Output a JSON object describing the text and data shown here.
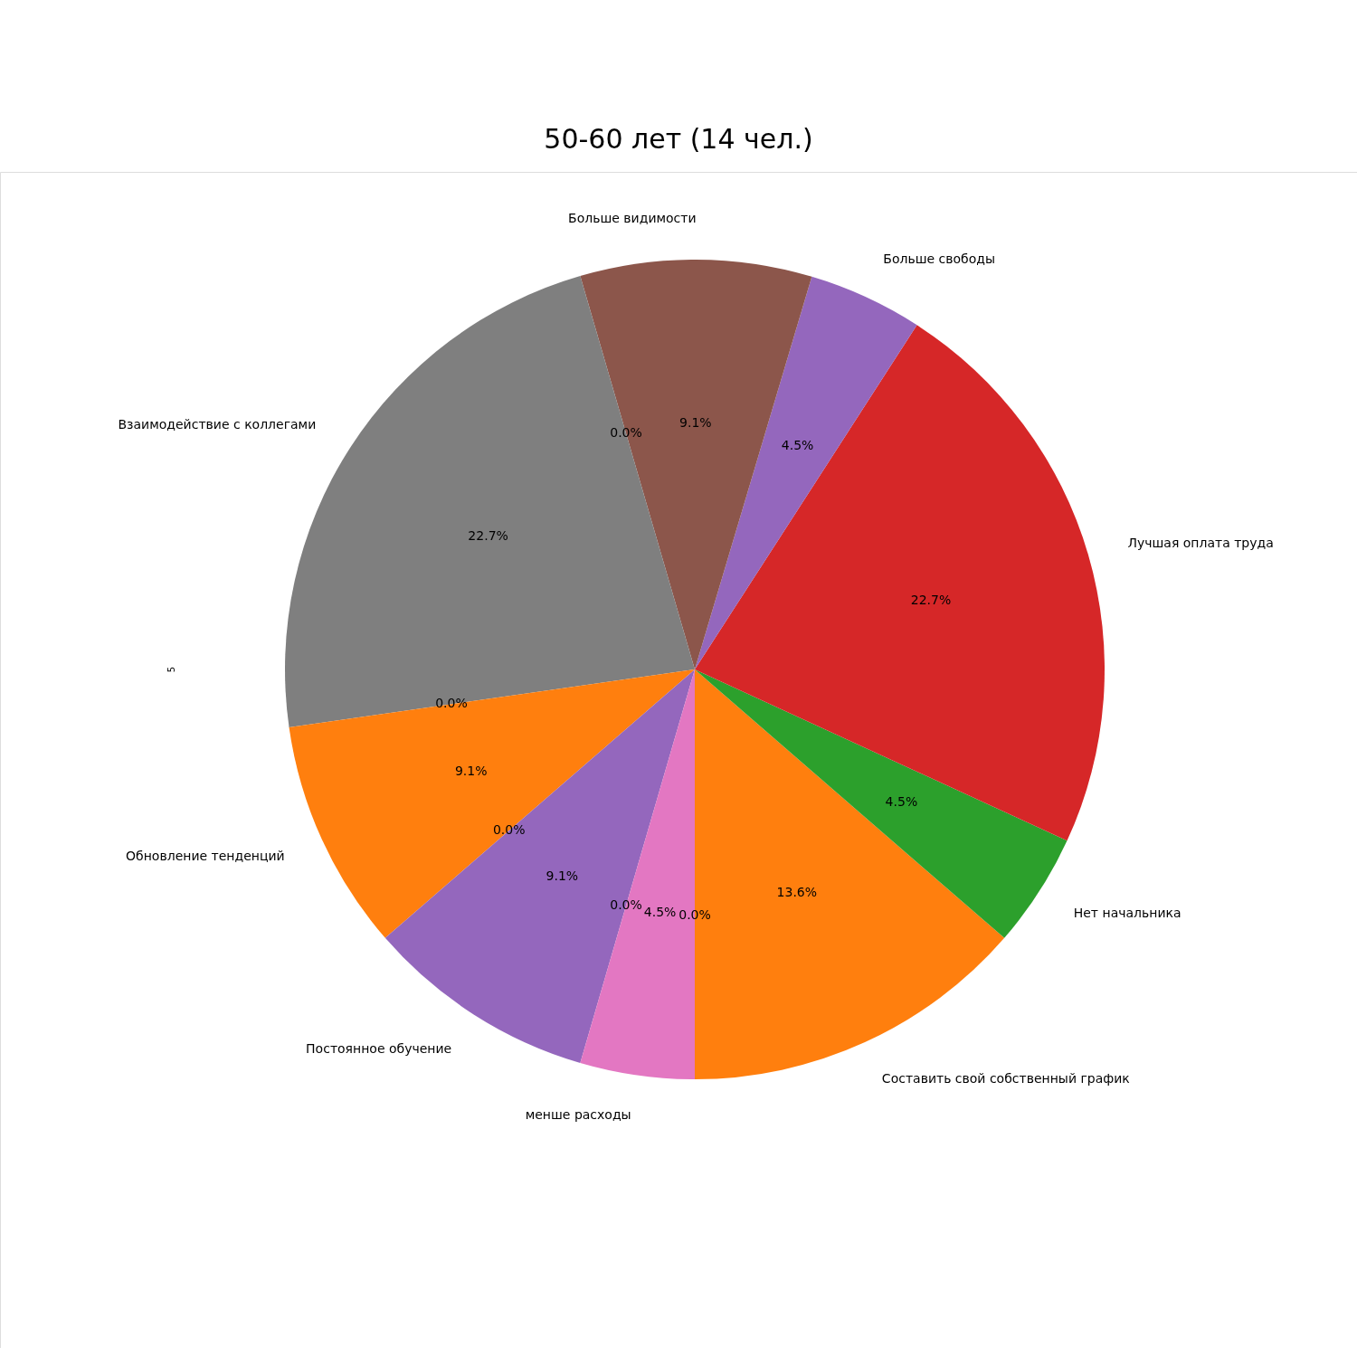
{
  "chart_data": {
    "type": "pie",
    "title": "50-60 лет (14 чел.)",
    "ylabel": "5",
    "categories": [
      "Составить свой собственный график",
      "Нет начальника",
      "Лучшая оплата труда",
      "Больше свободы",
      "Больше видимости",
      null,
      "Взаимодействие с коллегами",
      null,
      "Обновление тенденций",
      null,
      "Постоянное обучение",
      null,
      "менше расходы",
      null
    ],
    "values": [
      13.6,
      4.5,
      22.7,
      4.5,
      9.1,
      0,
      22.7,
      0,
      9.1,
      0,
      9.1,
      0,
      4.5,
      0
    ],
    "colors": [
      "#ff7f0e",
      "#2ca02c",
      "#d62728",
      "#9467bd",
      "#8c564b",
      "#e377c2",
      "#7f7f7f",
      "#bcbd22",
      "#ff7f0e",
      "#2ca02c",
      "#9467bd",
      "#8c564b",
      "#e377c2",
      "#7f7f7f"
    ],
    "value_labels": [
      "13.6%",
      "4.5%",
      "22.7%",
      "4.5%",
      "9.1%",
      "0.0%",
      "22.7%",
      "0.0%",
      "9.1%",
      "0.0%",
      "9.1%",
      "0.0%",
      "4.5%",
      "0.0%"
    ]
  }
}
